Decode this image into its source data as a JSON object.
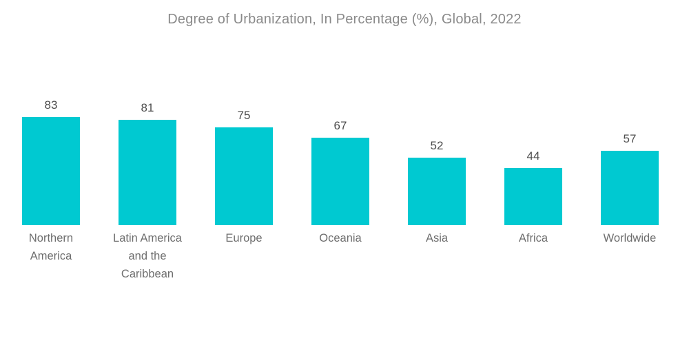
{
  "page": {
    "background_color": "#FFFFFF"
  },
  "colors": {
    "bar": "#00C9D1",
    "title_text": "#8A8A8A",
    "value_label_text": "#4D4D4D",
    "category_label_text": "#6E6E6E"
  },
  "chart_data": {
    "type": "bar",
    "title": "Degree of Urbanization, In Percentage (%), Global, 2022",
    "categories": [
      "Northern America",
      "Latin America and the Caribbean",
      "Europe",
      "Oceania",
      "Asia",
      "Africa",
      "Worldwide"
    ],
    "category_lines": [
      [
        "Northern",
        "America"
      ],
      [
        "Latin America",
        "and the",
        "Caribbean"
      ],
      [
        "Europe"
      ],
      [
        "Oceania"
      ],
      [
        "Asia"
      ],
      [
        "Africa"
      ],
      [
        "Worldwide"
      ]
    ],
    "values": [
      83,
      81,
      75,
      67,
      52,
      44,
      57
    ],
    "unit": "%",
    "xlabel": "",
    "ylabel": "",
    "ylim": [
      0,
      100
    ],
    "grid": false,
    "legend": false,
    "axes_visible": false,
    "data_labels": true,
    "data_label_position": "above-bar"
  }
}
